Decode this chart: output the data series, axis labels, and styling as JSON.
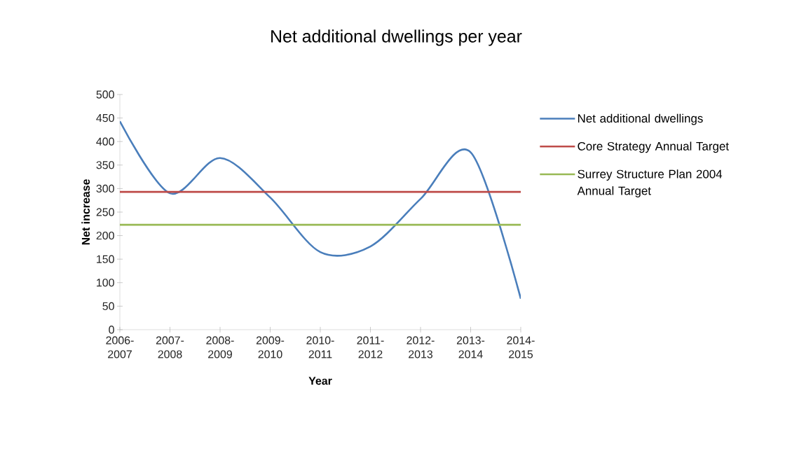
{
  "chart_data": {
    "type": "line",
    "title": "Net additional dwellings per year",
    "xlabel": "Year",
    "ylabel": "Net increase",
    "categories": [
      "2006-2007",
      "2007-2008",
      "2008-2009",
      "2009-2010",
      "2010-2011",
      "2011-2012",
      "2012-2013",
      "2013-2014",
      "2014-2015"
    ],
    "series": [
      {
        "name": "Net additional dwellings",
        "color": "#4a7ebb",
        "values": [
          443,
          290,
          365,
          281,
          165,
          177,
          278,
          377,
          66
        ]
      },
      {
        "name": "Core Strategy Annual Target",
        "color": "#be4b48",
        "values": [
          293,
          293,
          293,
          293,
          293,
          293,
          293,
          293,
          293
        ]
      },
      {
        "name": "Surrey Structure Plan 2004 Annual Target",
        "color": "#98b954",
        "values": [
          223,
          223,
          223,
          223,
          223,
          223,
          223,
          223,
          223
        ]
      }
    ],
    "ylim": [
      0,
      500
    ],
    "yticks": [
      0,
      50,
      100,
      150,
      200,
      250,
      300,
      350,
      400,
      450,
      500
    ],
    "grid": false,
    "legend": "right",
    "marker": "none",
    "line_style": "solid"
  }
}
